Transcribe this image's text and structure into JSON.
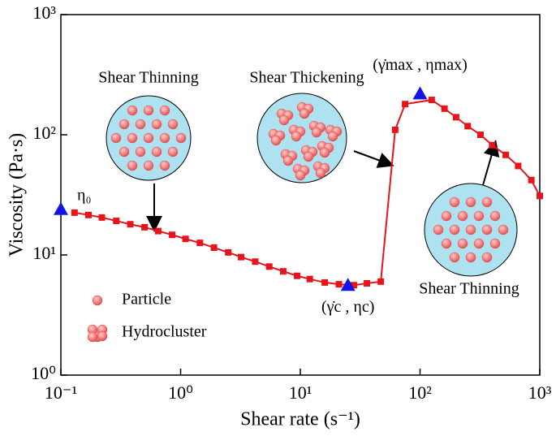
{
  "chart_data": {
    "type": "line",
    "x_label": "Shear rate (s⁻¹)",
    "y_label": "Viscosity (Pa·s)",
    "x_log": true,
    "y_log": true,
    "xlim": [
      0.1,
      1000
    ],
    "ylim": [
      1,
      1000
    ],
    "xticks": [
      {
        "value": 0.1,
        "label": "10⁻¹"
      },
      {
        "value": 1,
        "label": "10⁰"
      },
      {
        "value": 10,
        "label": "10¹"
      },
      {
        "value": 100,
        "label": "10²"
      },
      {
        "value": 1000,
        "label": "10³"
      }
    ],
    "yticks": [
      {
        "value": 1,
        "label": "10⁰"
      },
      {
        "value": 10,
        "label": "10¹"
      },
      {
        "value": 100,
        "label": "10²"
      },
      {
        "value": 1000,
        "label": "10³"
      }
    ],
    "x": [
      0.13,
      0.17,
      0.22,
      0.29,
      0.38,
      0.5,
      0.65,
      0.85,
      1.1,
      1.45,
      1.9,
      2.5,
      3.2,
      4.2,
      5.5,
      7.2,
      9.4,
      12,
      16,
      21,
      28,
      36,
      47,
      62,
      75,
      125,
      160,
      200,
      250,
      320,
      400,
      520,
      660,
      850,
      1000
    ],
    "series": [
      {
        "color": "#e8141c",
        "values": [
          22.5,
          21.5,
          20.5,
          19.2,
          18,
          17,
          15.8,
          14.7,
          13.6,
          12.6,
          11.5,
          10.5,
          9.6,
          8.8,
          8.0,
          7.3,
          6.7,
          6.3,
          5.9,
          5.7,
          5.6,
          5.8,
          6.0,
          110,
          180,
          195,
          165,
          140,
          118,
          100,
          82,
          68,
          55,
          42,
          31
        ]
      }
    ],
    "highlight_points": {
      "color": "#1414e6",
      "x": [
        0.1,
        25,
        100
      ],
      "values": [
        24,
        5.6,
        220
      ],
      "labels": [
        "η₀",
        "(γ̇c , ηc)",
        "(γ̇max , ηmax)"
      ]
    },
    "annotations": [
      "Shear Thinning",
      "Shear Thickening",
      "Shear Thinning"
    ],
    "legend": [
      "Particle",
      "Hydrocluster"
    ]
  }
}
